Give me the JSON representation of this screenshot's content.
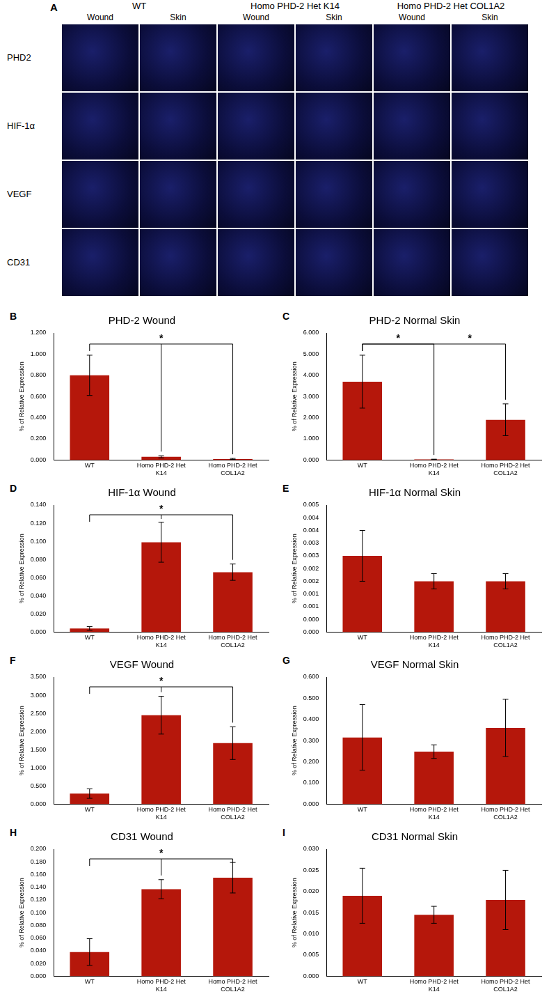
{
  "panel_a": {
    "label": "A",
    "groups": [
      "WT",
      "Homo PHD-2 Het K14",
      "Homo PHD-2 Het COL1A2"
    ],
    "columns": [
      "Wound",
      "Skin"
    ],
    "rows": [
      "PHD2",
      "HIF-1α",
      "VEGF",
      "CD31"
    ]
  },
  "chart_data": [
    {
      "panel": "B",
      "type": "bar",
      "title": "PHD-2 Wound",
      "y_label": "% of Relative Expression",
      "categories": [
        "WT",
        "Homo PHD-2 Het K14",
        "Homo PHD-2 Het COL1A2"
      ],
      "values": [
        0.8,
        0.03,
        0.01
      ],
      "errors": [
        0.19,
        0.01,
        0.005
      ],
      "color": "#b5170b",
      "grid": false,
      "ylim": [
        0,
        1.2
      ],
      "yticks": [
        {
          "value": 0,
          "label": "0.000"
        },
        {
          "value": 0.2,
          "label": "0.200"
        },
        {
          "value": 0.4,
          "label": "0.400"
        },
        {
          "value": 0.6,
          "label": "0.600"
        },
        {
          "value": 0.8,
          "label": "0.800"
        },
        {
          "value": 1.0,
          "label": "1.000"
        },
        {
          "value": 1.2,
          "label": "1.200"
        }
      ],
      "significance": [
        {
          "from": 0,
          "to": [
            1,
            2
          ],
          "label": "*"
        }
      ]
    },
    {
      "panel": "C",
      "type": "bar",
      "title": "PHD-2 Normal Skin",
      "y_label": "% of Relative Expression",
      "categories": [
        "WT",
        "Homo PHD-2 Het K14",
        "Homo PHD-2 Het COL1A2"
      ],
      "values": [
        3.7,
        0.03,
        1.9
      ],
      "errors": [
        1.25,
        0.01,
        0.75
      ],
      "color": "#b5170b",
      "grid": false,
      "ylim": [
        0,
        6
      ],
      "yticks": [
        {
          "value": 0,
          "label": "0.000"
        },
        {
          "value": 1,
          "label": "1.000"
        },
        {
          "value": 2,
          "label": "2.000"
        },
        {
          "value": 3,
          "label": "3.000"
        },
        {
          "value": 4,
          "label": "4.000"
        },
        {
          "value": 5,
          "label": "5.000"
        },
        {
          "value": 6,
          "label": "6.000"
        }
      ],
      "significance": [
        {
          "from": 0,
          "to": [
            1
          ],
          "label": "*"
        },
        {
          "from": 0,
          "to": [
            2
          ],
          "label": "*"
        }
      ]
    },
    {
      "panel": "D",
      "type": "bar",
      "title": "HIF-1α Wound",
      "y_label": "% of Relative Expression",
      "categories": [
        "WT",
        "Homo PHD-2 Het K14",
        "Homo PHD-2 Het COL1A2"
      ],
      "values": [
        0.004,
        0.099,
        0.066
      ],
      "errors": [
        0.002,
        0.022,
        0.009
      ],
      "color": "#b5170b",
      "grid": false,
      "ylim": [
        0,
        0.14
      ],
      "yticks": [
        {
          "value": 0,
          "label": "0.000"
        },
        {
          "value": 0.02,
          "label": "0.020"
        },
        {
          "value": 0.04,
          "label": "0.040"
        },
        {
          "value": 0.06,
          "label": "0.060"
        },
        {
          "value": 0.08,
          "label": "0.080"
        },
        {
          "value": 0.1,
          "label": "0.100"
        },
        {
          "value": 0.12,
          "label": "0.120"
        },
        {
          "value": 0.14,
          "label": "0.140"
        }
      ],
      "significance": [
        {
          "from": 0,
          "to": [
            1,
            2
          ],
          "label": "*"
        }
      ]
    },
    {
      "panel": "E",
      "type": "bar",
      "title": "HIF-1α Normal Skin",
      "y_label": "% of Relative Expression",
      "categories": [
        "WT",
        "Homo PHD-2 Het K14",
        "Homo PHD-2 Het COL1A2"
      ],
      "values": [
        0.003,
        0.002,
        0.002
      ],
      "errors": [
        0.001,
        0.0003,
        0.0003
      ],
      "color": "#b5170b",
      "grid": false,
      "ylim": [
        0,
        0.005
      ],
      "yticks": [
        {
          "value": 0,
          "label": "0.000"
        },
        {
          "value": 0.0005,
          "label": "0.000"
        },
        {
          "value": 0.001,
          "label": "0.001"
        },
        {
          "value": 0.0015,
          "label": "0.001"
        },
        {
          "value": 0.002,
          "label": "0.002"
        },
        {
          "value": 0.0025,
          "label": "0.002"
        },
        {
          "value": 0.003,
          "label": "0.003"
        },
        {
          "value": 0.0035,
          "label": "0.003"
        },
        {
          "value": 0.004,
          "label": "0.004"
        },
        {
          "value": 0.0045,
          "label": "0.004"
        },
        {
          "value": 0.005,
          "label": "0.005"
        }
      ],
      "significance": []
    },
    {
      "panel": "F",
      "type": "bar",
      "title": "VEGF Wound",
      "y_label": "% of Relative Expression",
      "categories": [
        "WT",
        "Homo PHD-2 Het K14",
        "Homo PHD-2 Het COL1A2"
      ],
      "values": [
        0.29,
        2.45,
        1.68
      ],
      "errors": [
        0.13,
        0.52,
        0.45
      ],
      "color": "#b5170b",
      "grid": false,
      "ylim": [
        0,
        3.5
      ],
      "yticks": [
        {
          "value": 0,
          "label": "0.000"
        },
        {
          "value": 0.5,
          "label": "0.500"
        },
        {
          "value": 1.0,
          "label": "1.000"
        },
        {
          "value": 1.5,
          "label": "1.500"
        },
        {
          "value": 2.0,
          "label": "2.000"
        },
        {
          "value": 2.5,
          "label": "2.500"
        },
        {
          "value": 3.0,
          "label": "3.000"
        },
        {
          "value": 3.5,
          "label": "3.500"
        }
      ],
      "significance": [
        {
          "from": 0,
          "to": [
            1,
            2
          ],
          "label": "*"
        }
      ]
    },
    {
      "panel": "G",
      "type": "bar",
      "title": "VEGF Normal Skin",
      "y_label": "% of Relative Expression",
      "categories": [
        "WT",
        "Homo PHD-2 Het K14",
        "Homo PHD-2 Het COL1A2"
      ],
      "values": [
        0.315,
        0.248,
        0.36
      ],
      "errors": [
        0.155,
        0.032,
        0.135
      ],
      "color": "#b5170b",
      "grid": false,
      "ylim": [
        0,
        0.6
      ],
      "yticks": [
        {
          "value": 0,
          "label": "0.000"
        },
        {
          "value": 0.1,
          "label": "0.100"
        },
        {
          "value": 0.2,
          "label": "0.200"
        },
        {
          "value": 0.3,
          "label": "0.300"
        },
        {
          "value": 0.4,
          "label": "0.400"
        },
        {
          "value": 0.5,
          "label": "0.500"
        },
        {
          "value": 0.6,
          "label": "0.600"
        }
      ],
      "significance": []
    },
    {
      "panel": "H",
      "type": "bar",
      "title": "CD31 Wound",
      "y_label": "% of Relative Expression",
      "categories": [
        "WT",
        "Homo PHD-2 Het K14",
        "Homo PHD-2 Het COL1A2"
      ],
      "values": [
        0.038,
        0.137,
        0.155
      ],
      "errors": [
        0.021,
        0.015,
        0.024
      ],
      "color": "#b5170b",
      "grid": false,
      "ylim": [
        0,
        0.2
      ],
      "yticks": [
        {
          "value": 0,
          "label": "0.000"
        },
        {
          "value": 0.02,
          "label": "0.020"
        },
        {
          "value": 0.04,
          "label": "0.040"
        },
        {
          "value": 0.06,
          "label": "0.060"
        },
        {
          "value": 0.08,
          "label": "0.080"
        },
        {
          "value": 0.1,
          "label": "0.100"
        },
        {
          "value": 0.12,
          "label": "0.120"
        },
        {
          "value": 0.14,
          "label": "0.140"
        },
        {
          "value": 0.16,
          "label": "0.160"
        },
        {
          "value": 0.18,
          "label": "0.180"
        },
        {
          "value": 0.2,
          "label": "0.200"
        }
      ],
      "significance": [
        {
          "from": 0,
          "to": [
            1,
            2
          ],
          "label": "*"
        }
      ]
    },
    {
      "panel": "I",
      "type": "bar",
      "title": "CD31 Normal Skin",
      "y_label": "% of Relative Expression",
      "categories": [
        "WT",
        "Homo PHD-2 Het K14",
        "Homo PHD-2 Het COL1A2"
      ],
      "values": [
        0.019,
        0.0145,
        0.018
      ],
      "errors": [
        0.0065,
        0.002,
        0.007
      ],
      "color": "#b5170b",
      "grid": false,
      "ylim": [
        0,
        0.03
      ],
      "yticks": [
        {
          "value": 0,
          "label": "0.000"
        },
        {
          "value": 0.005,
          "label": "0.005"
        },
        {
          "value": 0.01,
          "label": "0.010"
        },
        {
          "value": 0.015,
          "label": "0.015"
        },
        {
          "value": 0.02,
          "label": "0.020"
        },
        {
          "value": 0.025,
          "label": "0.025"
        },
        {
          "value": 0.03,
          "label": "0.030"
        }
      ],
      "significance": []
    }
  ]
}
